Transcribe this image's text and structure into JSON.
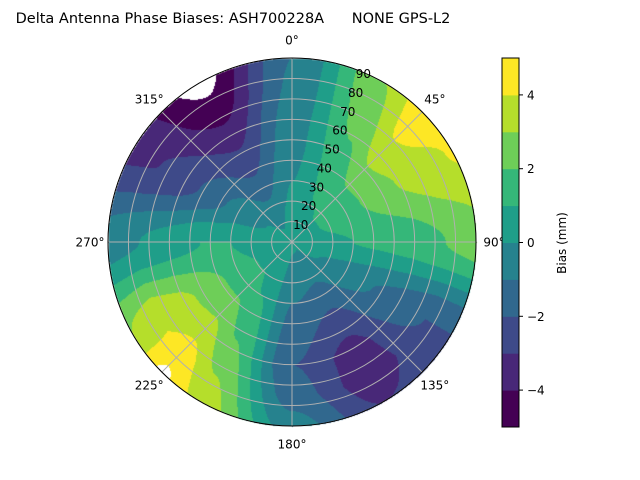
{
  "chart_data": {
    "type": "heatmap",
    "subtype": "polar-filled-contour",
    "title": "Delta Antenna Phase Biases: ASH700228A      NONE GPS-L2",
    "theta_direction": "clockwise",
    "theta_zero": "top",
    "theta_tick_labels": [
      "0°",
      "45°",
      "90°",
      "135°",
      "180°",
      "225°",
      "270°",
      "315°"
    ],
    "theta_ticks": [
      0,
      45,
      90,
      135,
      180,
      225,
      270,
      315
    ],
    "r_ticks": [
      10,
      20,
      30,
      40,
      50,
      60,
      70,
      80,
      90
    ],
    "r_tick_labels": [
      "10",
      "20",
      "30",
      "40",
      "50",
      "60",
      "70",
      "80",
      "90"
    ],
    "rlim": [
      0,
      90
    ],
    "grid": true,
    "colormap": "viridis",
    "levels": [
      -5,
      -4,
      -3,
      -2,
      -1,
      0,
      1,
      2,
      3,
      4,
      5
    ],
    "band_colors": [
      "#440154",
      "#482878",
      "#3e4a89",
      "#31688e",
      "#26828e",
      "#1f9e89",
      "#35b779",
      "#6ece58",
      "#b5de2b",
      "#fde725"
    ],
    "colorbar": {
      "label": "Bias (mm)",
      "ticks": [
        -4,
        -2,
        0,
        2,
        4
      ],
      "tick_labels": [
        "−4",
        "−2",
        "0",
        "2",
        "4"
      ],
      "range": [
        -5,
        5
      ]
    },
    "azimuths": [
      0,
      30,
      45,
      60,
      90,
      120,
      150,
      180,
      210,
      225,
      240,
      270,
      300,
      330
    ],
    "zeniths": [
      0,
      15,
      30,
      45,
      60,
      75,
      90
    ],
    "values": [
      [
        0.5,
        0.3,
        0.0,
        -0.3,
        -0.5,
        -0.8,
        -1.0
      ],
      [
        0.5,
        0.9,
        1.2,
        1.6,
        2.1,
        2.6,
        3.0
      ],
      [
        0.5,
        1.0,
        1.5,
        2.5,
        3.5,
        4.2,
        4.6
      ],
      [
        0.5,
        1.0,
        1.5,
        2.4,
        3.1,
        3.7,
        4.1
      ],
      [
        0.5,
        0.8,
        1.0,
        1.2,
        1.5,
        2.0,
        2.5
      ],
      [
        0.3,
        0.0,
        -0.5,
        -1.0,
        -1.5,
        -2.0,
        -2.0
      ],
      [
        0.2,
        -0.5,
        -1.5,
        -2.5,
        -3.4,
        -3.6,
        -3.0
      ],
      [
        0.2,
        -0.3,
        -1.0,
        -1.5,
        -2.0,
        -1.5,
        -0.5
      ],
      [
        0.3,
        0.5,
        1.0,
        1.6,
        2.2,
        3.0,
        3.6
      ],
      [
        0.3,
        0.8,
        1.5,
        2.5,
        3.5,
        4.5,
        5.2
      ],
      [
        0.3,
        0.8,
        1.5,
        2.5,
        3.3,
        3.8,
        3.0
      ],
      [
        0.3,
        0.5,
        1.0,
        1.0,
        0.5,
        0.0,
        -0.5
      ],
      [
        0.3,
        0.0,
        -0.5,
        -1.5,
        -2.5,
        -3.0,
        -3.2
      ],
      [
        0.3,
        -0.3,
        -1.5,
        -2.5,
        -3.5,
        -4.6,
        -5.4
      ]
    ]
  }
}
